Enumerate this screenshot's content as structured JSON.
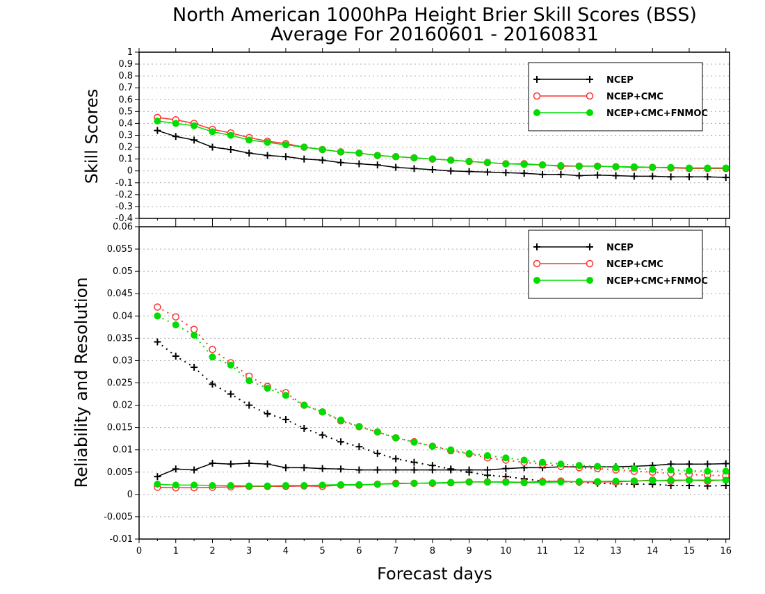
{
  "title": {
    "line1": "North American 1000hPa Height Brier Skill Scores (BSS)",
    "line2": "Average For 20160601 - 20160831"
  },
  "xaxis": {
    "label": "Forecast days",
    "ticks": [
      "0",
      "1",
      "2",
      "3",
      "4",
      "5",
      "6",
      "7",
      "8",
      "9",
      "10",
      "11",
      "12",
      "13",
      "14",
      "15",
      "16"
    ]
  },
  "chart_data": [
    {
      "type": "line",
      "ylabel": "Skill Scores",
      "xlabel": "Forecast days",
      "xlim": [
        0,
        16.1
      ],
      "ylim": [
        -0.4,
        1
      ],
      "yticks": [
        "-0.4",
        "-0.3",
        "-0.2",
        "-0.1",
        "0",
        "0.1",
        "0.2",
        "0.3",
        "0.4",
        "0.5",
        "0.6",
        "0.7",
        "0.8",
        "0.9",
        "1"
      ],
      "grid": true,
      "legend": "top-right",
      "x": [
        0.5,
        1,
        1.5,
        2,
        2.5,
        3,
        3.5,
        4,
        4.5,
        5,
        5.5,
        6,
        6.5,
        7,
        7.5,
        8,
        8.5,
        9,
        9.5,
        10,
        10.5,
        11,
        11.5,
        12,
        12.5,
        13,
        13.5,
        14,
        14.5,
        15,
        15.5,
        16
      ],
      "series": [
        {
          "name": "NCEP",
          "color": "#000000",
          "marker": "plus",
          "values": [
            0.34,
            0.29,
            0.26,
            0.2,
            0.18,
            0.15,
            0.13,
            0.12,
            0.1,
            0.09,
            0.07,
            0.06,
            0.05,
            0.03,
            0.02,
            0.01,
            0.0,
            -0.005,
            -0.01,
            -0.015,
            -0.02,
            -0.03,
            -0.03,
            -0.04,
            -0.035,
            -0.04,
            -0.045,
            -0.045,
            -0.05,
            -0.05,
            -0.05,
            -0.055
          ]
        },
        {
          "name": "NCEP+CMC",
          "color": "#ff3030",
          "marker": "circle-open",
          "values": [
            0.45,
            0.43,
            0.4,
            0.35,
            0.32,
            0.28,
            0.25,
            0.23,
            0.2,
            0.18,
            0.16,
            0.15,
            0.13,
            0.12,
            0.11,
            0.1,
            0.09,
            0.08,
            0.07,
            0.06,
            0.06,
            0.05,
            0.04,
            0.04,
            0.04,
            0.035,
            0.03,
            0.03,
            0.025,
            0.02,
            0.02,
            0.02
          ]
        },
        {
          "name": "NCEP+CMC+FNMOC",
          "color": "#00dd00",
          "marker": "circle-filled",
          "values": [
            0.42,
            0.4,
            0.38,
            0.33,
            0.3,
            0.26,
            0.24,
            0.22,
            0.2,
            0.18,
            0.16,
            0.15,
            0.13,
            0.12,
            0.11,
            0.1,
            0.09,
            0.08,
            0.07,
            0.06,
            0.055,
            0.05,
            0.045,
            0.04,
            0.04,
            0.035,
            0.035,
            0.03,
            0.03,
            0.025,
            0.025,
            0.025
          ]
        }
      ]
    },
    {
      "type": "line",
      "ylabel": "Reliability and Resolution",
      "xlabel": "Forecast days",
      "xlim": [
        0,
        16.1
      ],
      "ylim": [
        -0.01,
        0.06
      ],
      "yticks": [
        "-0.01",
        "-0.005",
        "0",
        "0.005",
        "0.01",
        "0.015",
        "0.02",
        "0.025",
        "0.03",
        "0.035",
        "0.04",
        "0.045",
        "0.05",
        "0.055",
        "0.06"
      ],
      "grid": true,
      "legend": "top-right",
      "x": [
        0.5,
        1,
        1.5,
        2,
        2.5,
        3,
        3.5,
        4,
        4.5,
        5,
        5.5,
        6,
        6.5,
        7,
        7.5,
        8,
        8.5,
        9,
        9.5,
        10,
        10.5,
        11,
        11.5,
        12,
        12.5,
        13,
        13.5,
        14,
        14.5,
        15,
        15.5,
        16
      ],
      "series": [
        {
          "name": "NCEP",
          "color": "#000000",
          "marker": "plus",
          "style": "solid",
          "values": [
            0.004,
            0.0057,
            0.0055,
            0.007,
            0.0068,
            0.007,
            0.0068,
            0.006,
            0.006,
            0.0058,
            0.0057,
            0.0055,
            0.0055,
            0.0055,
            0.0055,
            0.0055,
            0.0055,
            0.0055,
            0.0055,
            0.0058,
            0.006,
            0.006,
            0.0062,
            0.0062,
            0.0062,
            0.0062,
            0.0063,
            0.0065,
            0.0068,
            0.0068,
            0.0068,
            0.0069
          ]
        },
        {
          "name": "NCEP",
          "color": "#000000",
          "marker": "plus",
          "style": "dotted",
          "values": [
            0.0342,
            0.031,
            0.0285,
            0.0247,
            0.0225,
            0.02,
            0.0181,
            0.0168,
            0.0148,
            0.0133,
            0.0118,
            0.0107,
            0.0092,
            0.008,
            0.0072,
            0.0065,
            0.0057,
            0.005,
            0.0043,
            0.004,
            0.0035,
            0.003,
            0.0029,
            0.0027,
            0.0025,
            0.0024,
            0.0023,
            0.0023,
            0.002,
            0.002,
            0.0019,
            0.002
          ]
        },
        {
          "name": "NCEP+CMC",
          "color": "#ff3030",
          "marker": "circle-open",
          "style": "solid",
          "values": [
            0.0016,
            0.0015,
            0.0015,
            0.0016,
            0.0017,
            0.0018,
            0.0018,
            0.0018,
            0.0019,
            0.0018,
            0.0021,
            0.0021,
            0.0023,
            0.0025,
            0.0025,
            0.0025,
            0.0026,
            0.0028,
            0.0028,
            0.0028,
            0.0027,
            0.0029,
            0.003,
            0.0028,
            0.0028,
            0.0028,
            0.003,
            0.0032,
            0.003,
            0.0032,
            0.003,
            0.0033
          ]
        },
        {
          "name": "NCEP+CMC",
          "color": "#ff3030",
          "marker": "circle-open",
          "style": "dotted",
          "values": [
            0.042,
            0.0398,
            0.037,
            0.0325,
            0.0295,
            0.0265,
            0.0242,
            0.0228,
            0.02,
            0.0185,
            0.0165,
            0.0152,
            0.014,
            0.0127,
            0.0118,
            0.0108,
            0.0098,
            0.0091,
            0.0082,
            0.0077,
            0.0072,
            0.0068,
            0.0063,
            0.006,
            0.0058,
            0.0055,
            0.0052,
            0.005,
            0.0047,
            0.0045,
            0.0043,
            0.0042
          ]
        },
        {
          "name": "NCEP+CMC+FNMOC",
          "color": "#00dd00",
          "marker": "circle-filled",
          "style": "solid",
          "values": [
            0.0023,
            0.0021,
            0.0021,
            0.002,
            0.002,
            0.0019,
            0.0019,
            0.002,
            0.002,
            0.0021,
            0.0022,
            0.0022,
            0.0023,
            0.0024,
            0.0025,
            0.0026,
            0.0027,
            0.0028,
            0.0028,
            0.0027,
            0.0026,
            0.0027,
            0.0028,
            0.0029,
            0.0029,
            0.003,
            0.003,
            0.0031,
            0.0032,
            0.0032,
            0.0032,
            0.0032
          ]
        },
        {
          "name": "NCEP+CMC+FNMOC",
          "color": "#00dd00",
          "marker": "circle-filled",
          "style": "dotted",
          "values": [
            0.04,
            0.038,
            0.0357,
            0.0308,
            0.029,
            0.0255,
            0.0238,
            0.0222,
            0.02,
            0.0185,
            0.0167,
            0.0152,
            0.014,
            0.0127,
            0.0117,
            0.0108,
            0.01,
            0.0092,
            0.0087,
            0.0082,
            0.0077,
            0.0072,
            0.0068,
            0.0065,
            0.0063,
            0.006,
            0.0058,
            0.0056,
            0.0055,
            0.0053,
            0.0052,
            0.0052
          ]
        }
      ]
    }
  ]
}
